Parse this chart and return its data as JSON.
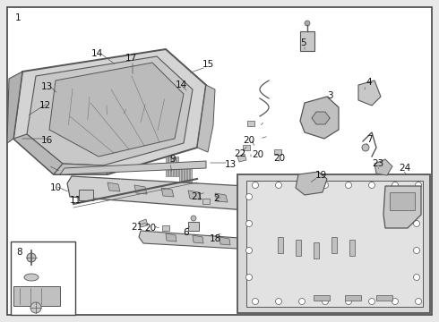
{
  "bg_color": "#e8e8e8",
  "border_color": "#444444",
  "line_color": "#555555",
  "label_color": "#111111",
  "fig_width": 4.9,
  "fig_height": 3.6,
  "dpi": 100
}
